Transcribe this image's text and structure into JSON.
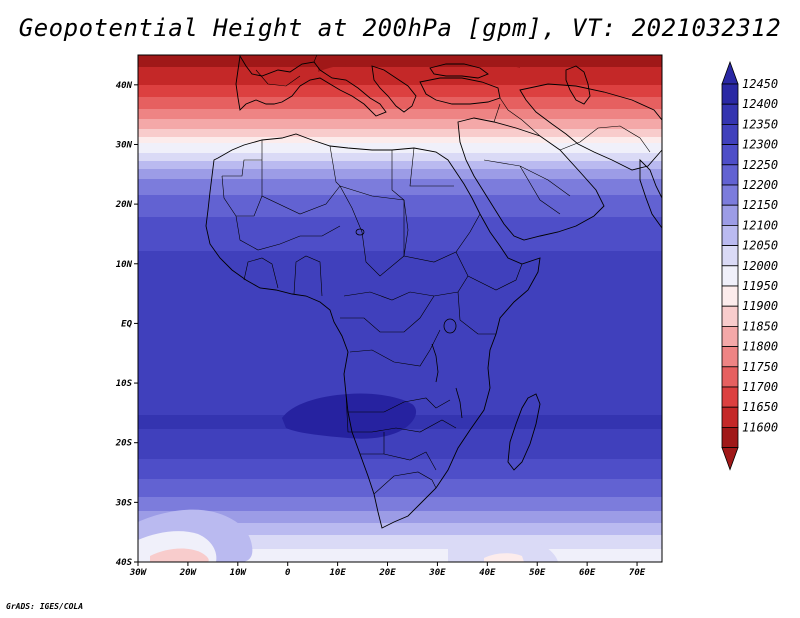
{
  "title": "Geopotential Height at 200hPa [gpm], VT: 2021032312",
  "credit": "GrADS: IGES/COLA",
  "map": {
    "lon_range": [
      -30,
      75
    ],
    "lat_range": [
      -40,
      45
    ],
    "lat_ticks": [
      {
        "value": 40,
        "label": "40N"
      },
      {
        "value": 30,
        "label": "30N"
      },
      {
        "value": 20,
        "label": "20N"
      },
      {
        "value": 10,
        "label": "10N"
      },
      {
        "value": 0,
        "label": "EQ"
      },
      {
        "value": -10,
        "label": "10S"
      },
      {
        "value": -20,
        "label": "20S"
      },
      {
        "value": -30,
        "label": "30S"
      },
      {
        "value": -40,
        "label": "40S"
      }
    ],
    "lon_ticks": [
      {
        "value": -30,
        "label": "30W"
      },
      {
        "value": -20,
        "label": "20W"
      },
      {
        "value": -10,
        "label": "10W"
      },
      {
        "value": 0,
        "label": "0"
      },
      {
        "value": 10,
        "label": "10E"
      },
      {
        "value": 20,
        "label": "20E"
      },
      {
        "value": 30,
        "label": "30E"
      },
      {
        "value": 40,
        "label": "40E"
      },
      {
        "value": 50,
        "label": "50E"
      },
      {
        "value": 60,
        "label": "60E"
      },
      {
        "value": 70,
        "label": "70E"
      }
    ],
    "band_colors": [
      "#a01818",
      "#c42828",
      "#dc4040",
      "#e66060",
      "#ee8484",
      "#f4a8a8",
      "#f8cccc",
      "#fcecec",
      "#f0f0fa",
      "#dadaf6",
      "#babaf0",
      "#9c9ce6",
      "#7c7cdc",
      "#6262d2",
      "#4e4ec8",
      "#4040bc",
      "#3434b0",
      "#2a28a4"
    ],
    "height_profile": [
      {
        "lat": 45,
        "gpm": 11620
      },
      {
        "lat": 40,
        "gpm": 11700
      },
      {
        "lat": 35,
        "gpm": 11830
      },
      {
        "lat": 32,
        "gpm": 11930
      },
      {
        "lat": 30,
        "gpm": 12010
      },
      {
        "lat": 27,
        "gpm": 12110
      },
      {
        "lat": 25,
        "gpm": 12190
      },
      {
        "lat": 20,
        "gpm": 12280
      },
      {
        "lat": 15,
        "gpm": 12330
      },
      {
        "lat": 10,
        "gpm": 12365
      },
      {
        "lat": 0,
        "gpm": 12375
      },
      {
        "lat": -10,
        "gpm": 12385
      },
      {
        "lat": -17,
        "gpm": 12405
      },
      {
        "lat": -22,
        "gpm": 12360
      },
      {
        "lat": -27,
        "gpm": 12280
      },
      {
        "lat": -30,
        "gpm": 12230
      },
      {
        "lat": -33,
        "gpm": 12160
      },
      {
        "lat": -36,
        "gpm": 12080
      },
      {
        "lat": -40,
        "gpm": 12000
      }
    ]
  },
  "colorbar": {
    "labels": [
      "12450",
      "12400",
      "12350",
      "12300",
      "12250",
      "12200",
      "12150",
      "12100",
      "12050",
      "12000",
      "11950",
      "11900",
      "11850",
      "11800",
      "11750",
      "11700",
      "11650",
      "11600"
    ],
    "colors": [
      "#2a28a4",
      "#3434b0",
      "#4040bc",
      "#4e4ec8",
      "#6262d2",
      "#7c7cdc",
      "#9c9ce6",
      "#babaf0",
      "#dadaf6",
      "#f0f0fa",
      "#fcecec",
      "#f8cccc",
      "#f4a8a8",
      "#ee8484",
      "#e66060",
      "#dc4040",
      "#c42828",
      "#a01818"
    ]
  }
}
